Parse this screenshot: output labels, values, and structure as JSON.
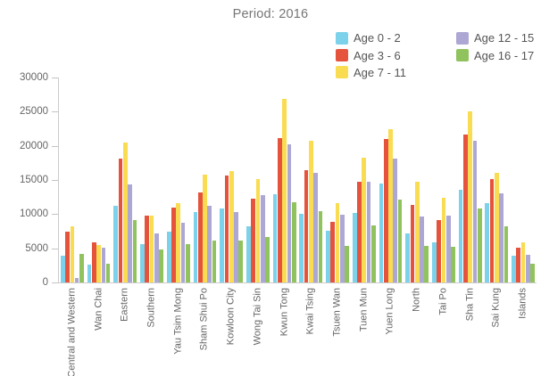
{
  "title": "Period: 2016",
  "colors": {
    "background": "#ffffff",
    "title_text": "#767676",
    "axis_line": "#cccccc",
    "axis_text": "#666666",
    "legend_text": "#555555"
  },
  "chart_data": {
    "type": "bar",
    "title": "Period: 2016",
    "grid": false,
    "legend_position": "top-right",
    "legend_columns": [
      [
        0,
        1,
        2
      ],
      [
        3,
        4
      ]
    ],
    "xlabel": "",
    "ylabel": "",
    "ylim": [
      0,
      30000
    ],
    "ytick_step": 5000,
    "ytick_labels": [
      "0",
      "5000",
      "10000",
      "15000",
      "20000",
      "25000",
      "30000"
    ],
    "categories": [
      "Central and Western",
      "Wan Chai",
      "Eastern",
      "Southern",
      "Yau Tsim Mong",
      "Sham Shui Po",
      "Kowloon City",
      "Wong Tai Sin",
      "Kwun Tong",
      "Kwai Tsing",
      "Tsuen Wan",
      "Tuen Mun",
      "Yuen Long",
      "North",
      "Tai Po",
      "Sha Tin",
      "Sai Kung",
      "Islands"
    ],
    "series": [
      {
        "name": "Age 0 - 2",
        "color": "#7bd2ea",
        "values": [
          3900,
          2600,
          11200,
          5600,
          7400,
          10300,
          10800,
          8200,
          12900,
          10100,
          7600,
          10200,
          14500,
          7200,
          5900,
          13600,
          11600,
          3900
        ]
      },
      {
        "name": "Age 3 - 6",
        "color": "#e5533c",
        "values": [
          7500,
          5900,
          18200,
          9800,
          10900,
          13200,
          15600,
          12300,
          21200,
          16400,
          8900,
          14700,
          21000,
          11300,
          9200,
          21600,
          15100,
          5100
        ]
      },
      {
        "name": "Age 7 - 11",
        "color": "#f9dc51",
        "values": [
          8200,
          5500,
          20500,
          9800,
          11600,
          15800,
          16300,
          15100,
          26900,
          20700,
          11600,
          18300,
          22400,
          14700,
          12400,
          25000,
          16100,
          5900
        ]
      },
      {
        "name": "Age 12 - 15",
        "color": "#ada7d4",
        "values": [
          600,
          5100,
          14300,
          7200,
          8700,
          11200,
          10300,
          12800,
          20200,
          16100,
          9900,
          14700,
          18100,
          9600,
          9800,
          20800,
          13000,
          4000
        ]
      },
      {
        "name": "Age 16 - 17",
        "color": "#90c35d",
        "values": [
          4200,
          2700,
          9100,
          4800,
          5600,
          6200,
          6100,
          6700,
          11800,
          10400,
          5300,
          8400,
          12100,
          5300,
          5200,
          10800,
          8200,
          2800
        ]
      }
    ]
  }
}
